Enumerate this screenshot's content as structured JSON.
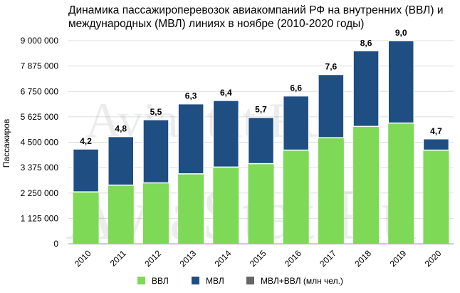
{
  "chart_data": {
    "type": "bar",
    "stacked": true,
    "title": "Динамика пассажироперевозок авиакомпаний РФ на внутренних (ВВЛ) и международных (МВЛ) линиях в ноябре (2010-2020 годы)",
    "ylabel": "Пассажиров",
    "xlabel": "",
    "ylim": [
      0,
      9000000
    ],
    "yticks": [
      0,
      1125000,
      2250000,
      3375000,
      4500000,
      5625000,
      6750000,
      7875000,
      9000000
    ],
    "ytick_labels": [
      "0",
      "1 125 000",
      "2 250 000",
      "3 375 000",
      "4 500 000",
      "5 625 000",
      "6 750 000",
      "7 875 000",
      "9 000 000"
    ],
    "categories": [
      "2010",
      "2011",
      "2012",
      "2013",
      "2014",
      "2015",
      "2016",
      "2017",
      "2018",
      "2019",
      "2020"
    ],
    "series": [
      {
        "name": "ВВЛ",
        "color": "#7ed957",
        "values": [
          2300000,
          2600000,
          2700000,
          3100000,
          3400000,
          3550000,
          4150000,
          4700000,
          5200000,
          5350000,
          4150000
        ]
      },
      {
        "name": "МВЛ",
        "color": "#1f4e82",
        "values": [
          1900000,
          2150000,
          2800000,
          3100000,
          2950000,
          2050000,
          2400000,
          2800000,
          3350000,
          3650000,
          500000
        ]
      }
    ],
    "total_series": {
      "name": "МВЛ+ВВЛ (млн чел.)",
      "color": "#666666"
    },
    "data_labels": [
      "4,2",
      "4,8",
      "5,5",
      "6,3",
      "6,4",
      "5,7",
      "6,6",
      "7,6",
      "8,6",
      "9,0",
      "4,7"
    ],
    "grid": true,
    "legend_position": "bottom"
  },
  "watermark": {
    "text": "AviaStat.Ru"
  }
}
